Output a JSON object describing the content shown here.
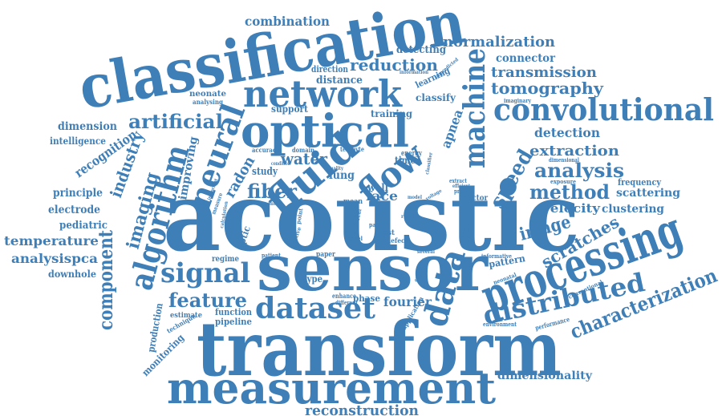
{
  "colors": {
    "word": "#3f7fb8",
    "background": "#ffffff"
  },
  "words": [
    {
      "id": "acoustic",
      "text": "acoustic",
      "size": 118
    },
    {
      "id": "transform",
      "text": "transform",
      "size": 94
    },
    {
      "id": "classification",
      "text": "classification",
      "size": 74
    },
    {
      "id": "sensor",
      "text": "sensor",
      "size": 80
    },
    {
      "id": "measurement",
      "text": "measurement",
      "size": 54
    },
    {
      "id": "processing",
      "text": "processing",
      "size": 60
    },
    {
      "id": "optical",
      "text": "optical",
      "size": 56
    },
    {
      "id": "network",
      "text": "network",
      "size": 46
    },
    {
      "id": "convolutional",
      "text": "convolutional",
      "size": 38
    },
    {
      "id": "fluid",
      "text": "fluid",
      "size": 50
    },
    {
      "id": "flow",
      "text": "flow",
      "size": 44
    },
    {
      "id": "algorithm",
      "text": "algorithm",
      "size": 40
    },
    {
      "id": "neural",
      "text": "neural",
      "size": 40
    },
    {
      "id": "machine",
      "text": "machine",
      "size": 36
    },
    {
      "id": "distributed",
      "text": "distributed",
      "size": 32
    },
    {
      "id": "dataset",
      "text": "dataset",
      "size": 36
    },
    {
      "id": "data",
      "text": "data",
      "size": 42
    },
    {
      "id": "signal",
      "text": "signal",
      "size": 34
    },
    {
      "id": "artificial",
      "text": "artificial",
      "size": 24
    },
    {
      "id": "fiber",
      "text": "fiber",
      "size": 24
    },
    {
      "id": "feature",
      "text": "feature",
      "size": 24
    },
    {
      "id": "characterization",
      "text": "characterization",
      "size": 24
    },
    {
      "id": "reduction",
      "text": "reduction",
      "size": 20
    },
    {
      "id": "normalization",
      "text": "normalization",
      "size": 18
    },
    {
      "id": "transmission",
      "text": "transmission",
      "size": 18
    },
    {
      "id": "tomography",
      "text": "tomography",
      "size": 20
    },
    {
      "id": "analysis",
      "text": "analysis",
      "size": 24
    },
    {
      "id": "method",
      "text": "method",
      "size": 24
    },
    {
      "id": "extraction",
      "text": "extraction",
      "size": 18
    },
    {
      "id": "speed",
      "text": "speed",
      "size": 26
    },
    {
      "id": "image",
      "text": "image",
      "size": 22
    },
    {
      "id": "scratches",
      "text": "scratches",
      "size": 20
    },
    {
      "id": "component",
      "text": "component",
      "size": 24
    },
    {
      "id": "imaging",
      "text": "imaging",
      "size": 22
    },
    {
      "id": "industry",
      "text": "industry",
      "size": 20
    },
    {
      "id": "recognition",
      "text": "recognition",
      "size": 16
    },
    {
      "id": "improving",
      "text": "improving",
      "size": 14
    },
    {
      "id": "radon",
      "text": "radon",
      "size": 18
    },
    {
      "id": "fourier",
      "text": "fourier",
      "size": 16
    },
    {
      "id": "reconstruction",
      "text": "reconstruction",
      "size": 18
    },
    {
      "id": "dimensionality",
      "text": "dimensionality",
      "size": 14
    },
    {
      "id": "combination",
      "text": "combination",
      "size": 16
    },
    {
      "id": "water",
      "text": "water",
      "size": 20
    },
    {
      "id": "temperature",
      "text": "temperature",
      "size": 16
    },
    {
      "id": "analysispca",
      "text": "analysispca",
      "size": 16
    },
    {
      "id": "downhole",
      "text": "downhole",
      "size": 12
    },
    {
      "id": "pediatric",
      "text": "pediatric",
      "size": 13
    },
    {
      "id": "electrode",
      "text": "electrode",
      "size": 14
    },
    {
      "id": "principle",
      "text": "principle",
      "size": 14
    },
    {
      "id": "intelligence",
      "text": "intelligence",
      "size": 12
    },
    {
      "id": "dimension",
      "text": "dimension",
      "size": 14
    },
    {
      "id": "detection",
      "text": "detection",
      "size": 16
    },
    {
      "id": "velocity",
      "text": "velocity",
      "size": 15
    },
    {
      "id": "clustering",
      "text": "clustering",
      "size": 14
    },
    {
      "id": "scattering",
      "text": "scattering",
      "size": 14
    },
    {
      "id": "frequency",
      "text": "frequency",
      "size": 11
    },
    {
      "id": "connector",
      "text": "connector",
      "size": 14
    },
    {
      "id": "detecting",
      "text": "detecting",
      "size": 13
    },
    {
      "id": "distance",
      "text": "distance",
      "size": 13
    },
    {
      "id": "direction",
      "text": "direction",
      "size": 11
    },
    {
      "id": "learning",
      "text": "learning",
      "size": 11
    },
    {
      "id": "classify",
      "text": "classify",
      "size": 12
    },
    {
      "id": "training",
      "text": "training",
      "size": 12
    },
    {
      "id": "apnea",
      "text": "apnea",
      "size": 16
    },
    {
      "id": "support",
      "text": "support",
      "size": 12
    },
    {
      "id": "neonate",
      "text": "neonate",
      "size": 10
    },
    {
      "id": "analysing",
      "text": "analysing",
      "size": 8
    },
    {
      "id": "study",
      "text": "study",
      "size": 13
    },
    {
      "id": "lung",
      "text": "lung",
      "size": 14
    },
    {
      "id": "face",
      "text": "face",
      "size": 16
    },
    {
      "id": "well",
      "text": "well",
      "size": 12
    },
    {
      "id": "mean",
      "text": "mean",
      "size": 9
    },
    {
      "id": "vector",
      "text": "vector",
      "size": 10
    },
    {
      "id": "time",
      "text": "time",
      "size": 12
    },
    {
      "id": "energy",
      "text": "energy",
      "size": 9
    },
    {
      "id": "accuracy",
      "text": "accuracy",
      "size": 8
    },
    {
      "id": "domain",
      "text": "domain",
      "size": 8
    },
    {
      "id": "terabyte",
      "text": "terabyte",
      "size": 8
    },
    {
      "id": "optic",
      "text": "optic",
      "size": 12
    },
    {
      "id": "regime",
      "text": "regime",
      "size": 10
    },
    {
      "id": "patient",
      "text": "patient",
      "size": 7
    },
    {
      "id": "paper",
      "text": "paper",
      "size": 9
    },
    {
      "id": "type",
      "text": "type",
      "size": 12
    },
    {
      "id": "phase",
      "text": "phase",
      "size": 11
    },
    {
      "id": "enhance",
      "text": "enhance",
      "size": 8
    },
    {
      "id": "different",
      "text": "different",
      "size": 7
    },
    {
      "id": "function",
      "text": "function",
      "size": 11
    },
    {
      "id": "pipeline",
      "text": "pipeline",
      "size": 11
    },
    {
      "id": "estimate",
      "text": "estimate",
      "size": 9
    },
    {
      "id": "production",
      "text": "production",
      "size": 12
    },
    {
      "id": "monitoring",
      "text": "monitoring",
      "size": 12
    },
    {
      "id": "technique",
      "text": "technique",
      "size": 8
    },
    {
      "id": "pipe",
      "text": "pipe",
      "size": 12
    },
    {
      "id": "fast",
      "text": "fast",
      "size": 9
    },
    {
      "id": "novel",
      "text": "novel",
      "size": 7
    },
    {
      "id": "defect",
      "text": "defect",
      "size": 8
    },
    {
      "id": "pattern",
      "text": "pattern",
      "size": 12
    },
    {
      "id": "informative",
      "text": "informative",
      "size": 7
    },
    {
      "id": "neonatal",
      "text": "neonatal",
      "size": 7
    },
    {
      "id": "environment",
      "text": "environment",
      "size": 7
    },
    {
      "id": "performance",
      "text": "performance",
      "size": 8
    },
    {
      "id": "conventional",
      "text": "conventional",
      "size": 7
    },
    {
      "id": "exposure",
      "text": "exposure",
      "size": 7
    },
    {
      "id": "dimensional",
      "text": "dimensional",
      "size": 7
    },
    {
      "id": "imaginary",
      "text": "imaginary",
      "size": 7
    },
    {
      "id": "information",
      "text": "information",
      "size": 6
    },
    {
      "id": "unpredicted",
      "text": "unpredicted",
      "size": 6
    },
    {
      "id": "application",
      "text": "application",
      "size": 8
    },
    {
      "id": "several",
      "text": "several",
      "size": 6
    },
    {
      "id": "extract",
      "text": "extract",
      "size": 7
    },
    {
      "id": "efficient",
      "text": "efficient",
      "size": 6
    },
    {
      "id": "present",
      "text": "present",
      "size": 7
    },
    {
      "id": "operator",
      "text": "operator",
      "size": 7
    },
    {
      "id": "control",
      "text": "control",
      "size": 6
    },
    {
      "id": "calculation",
      "text": "calculation",
      "size": 6
    },
    {
      "id": "measure",
      "text": "measure",
      "size": 7
    },
    {
      "id": "important",
      "text": "important",
      "size": 6
    },
    {
      "id": "condition",
      "text": "condition",
      "size": 6
    },
    {
      "id": "quality",
      "text": "quality",
      "size": 6
    },
    {
      "id": "active",
      "text": "active",
      "size": 7
    },
    {
      "id": "point",
      "text": "point",
      "size": 7
    },
    {
      "id": "part",
      "text": "part",
      "size": 7
    },
    {
      "id": "result",
      "text": "result",
      "size": 6
    },
    {
      "id": "model",
      "text": "model",
      "size": 6
    },
    {
      "id": "voltage",
      "text": "voltage",
      "size": 6
    },
    {
      "id": "classifier",
      "text": "classifier",
      "size": 6
    },
    {
      "id": "wear",
      "text": "wear",
      "size": 6
    },
    {
      "id": "real",
      "text": "real",
      "size": 7
    }
  ]
}
